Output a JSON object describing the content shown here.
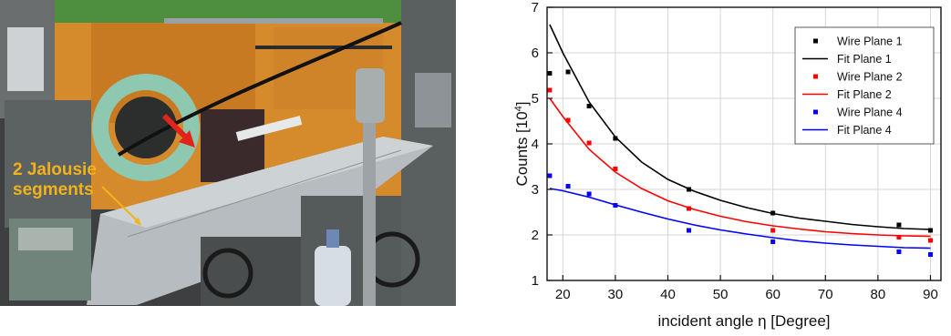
{
  "photo": {
    "label_line1": "2 Jalousie",
    "label_line2": "segments"
  },
  "chart_data": {
    "type": "scatter",
    "xlabel": "incident angle η [Degree]",
    "ylabel_main": "Counts [10",
    "ylabel_exp": "4",
    "ylabel_close": "]",
    "xlim": [
      17,
      92
    ],
    "ylim": [
      1,
      7
    ],
    "xticks": [
      20,
      30,
      40,
      50,
      60,
      70,
      80,
      90
    ],
    "yticks": [
      1,
      2,
      3,
      4,
      5,
      6,
      7
    ],
    "grid": true,
    "legend_position": "top-right",
    "series": [
      {
        "name": "Wire Plane 1",
        "kind": "points",
        "color": "#000000",
        "x": [
          17.5,
          21,
          25,
          30,
          44,
          60,
          84,
          90
        ],
        "y": [
          5.55,
          5.58,
          4.83,
          4.12,
          3.0,
          2.48,
          2.22,
          2.1
        ]
      },
      {
        "name": "Fit Plane 1",
        "kind": "line",
        "color": "#000000",
        "x": [
          17.5,
          20,
          25,
          30,
          35,
          40,
          45,
          50,
          55,
          60,
          65,
          70,
          75,
          80,
          85,
          90
        ],
        "y": [
          6.62,
          6.0,
          4.92,
          4.15,
          3.6,
          3.22,
          2.96,
          2.76,
          2.6,
          2.47,
          2.37,
          2.3,
          2.23,
          2.18,
          2.14,
          2.12
        ]
      },
      {
        "name": "Wire Plane 2",
        "kind": "points",
        "color": "#ff0000",
        "x": [
          17.5,
          21,
          25,
          30,
          44,
          60,
          84,
          90
        ],
        "y": [
          5.18,
          4.52,
          4.02,
          3.45,
          2.58,
          2.1,
          1.95,
          1.88
        ]
      },
      {
        "name": "Fit Plane 2",
        "kind": "line",
        "color": "#ff0000",
        "x": [
          17.5,
          20,
          25,
          30,
          35,
          40,
          45,
          50,
          55,
          60,
          65,
          70,
          75,
          80,
          85,
          90
        ],
        "y": [
          5.0,
          4.6,
          3.88,
          3.38,
          3.02,
          2.75,
          2.56,
          2.41,
          2.29,
          2.2,
          2.13,
          2.07,
          2.03,
          2.0,
          1.98,
          1.97
        ]
      },
      {
        "name": "Wire Plane 4",
        "kind": "points",
        "color": "#0000ff",
        "x": [
          17.5,
          21,
          25,
          30,
          44,
          60,
          84,
          90
        ],
        "y": [
          3.3,
          3.07,
          2.9,
          2.65,
          2.1,
          1.85,
          1.63,
          1.57
        ]
      },
      {
        "name": "Fit Plane 4",
        "kind": "line",
        "color": "#0000ff",
        "x": [
          17.5,
          20,
          25,
          30,
          35,
          40,
          45,
          50,
          55,
          60,
          65,
          70,
          75,
          80,
          85,
          90
        ],
        "y": [
          3.02,
          2.97,
          2.83,
          2.66,
          2.5,
          2.35,
          2.22,
          2.11,
          2.02,
          1.94,
          1.87,
          1.82,
          1.78,
          1.75,
          1.72,
          1.71
        ]
      }
    ]
  }
}
